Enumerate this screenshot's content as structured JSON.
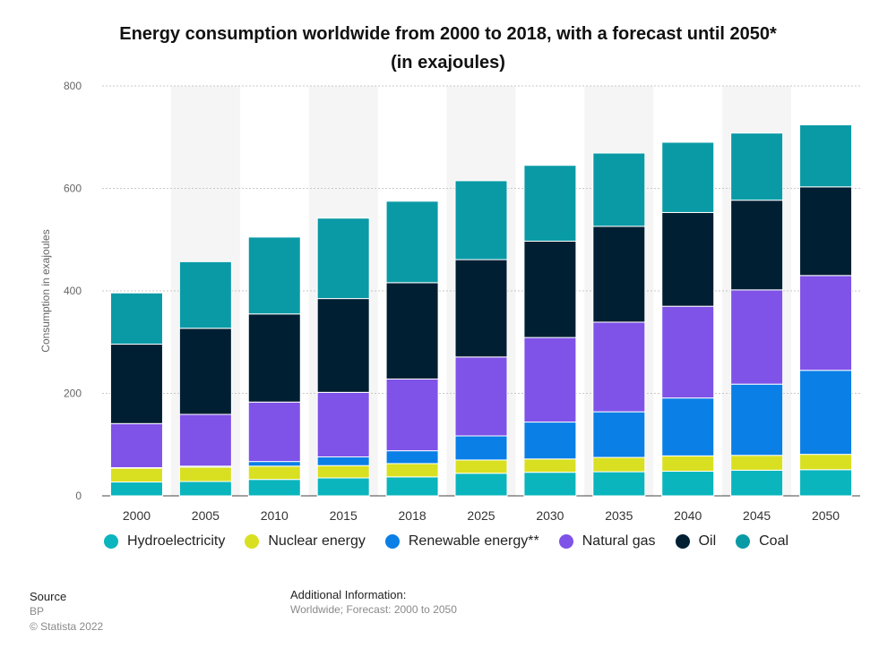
{
  "title": "Energy consumption worldwide from 2000 to 2018, with a forecast until 2050* (in exajoules)",
  "footer": {
    "source_label": "Source",
    "source_value": "BP",
    "copyright": "© Statista 2022",
    "additional_label": "Additional Information:",
    "additional_value": "Worldwide; Forecast: 2000 to 2050"
  },
  "chart_data": {
    "type": "bar",
    "stacked": true,
    "title": "Energy consumption worldwide from 2000 to 2018, with a forecast until 2050* (in exajoules)",
    "xlabel": "",
    "ylabel": "Consumption in exajoules",
    "ylim": [
      0,
      800
    ],
    "yticks": [
      0,
      200,
      400,
      600,
      800
    ],
    "grid": true,
    "legend": "bottom",
    "categories": [
      "2000",
      "2005",
      "2010",
      "2015",
      "2018",
      "2025",
      "2030",
      "2035",
      "2040",
      "2045",
      "2050"
    ],
    "series": [
      {
        "name": "Hydroelectricity",
        "color": "#0ab5bd",
        "values": [
          27,
          28,
          32,
          35,
          37,
          44,
          46,
          47,
          48,
          50,
          51
        ]
      },
      {
        "name": "Nuclear energy",
        "color": "#d9e021",
        "values": [
          27,
          28,
          26,
          24,
          26,
          26,
          26,
          28,
          30,
          29,
          30
        ]
      },
      {
        "name": "Renewable energy**",
        "color": "#0a7fe6",
        "values": [
          1,
          2,
          9,
          17,
          25,
          47,
          72,
          89,
          113,
          139,
          164
        ]
      },
      {
        "name": "Natural gas",
        "color": "#7f52e8",
        "values": [
          86,
          101,
          116,
          126,
          140,
          154,
          165,
          175,
          179,
          184,
          185
        ]
      },
      {
        "name": "Oil",
        "color": "#001f33",
        "values": [
          155,
          168,
          172,
          183,
          188,
          190,
          188,
          187,
          183,
          175,
          173
        ]
      },
      {
        "name": "Coal",
        "color": "#0a9aa6",
        "values": [
          100,
          130,
          150,
          157,
          159,
          154,
          148,
          143,
          137,
          131,
          121
        ]
      }
    ]
  }
}
